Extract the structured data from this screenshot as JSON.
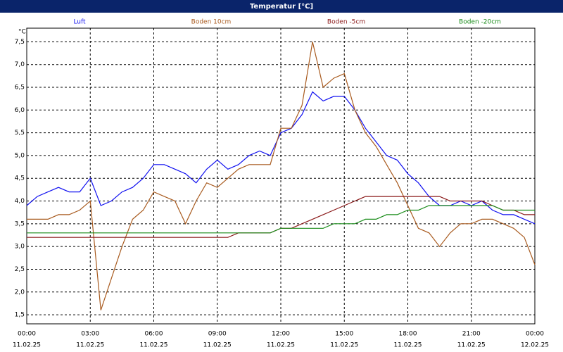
{
  "chart_data": {
    "type": "line",
    "title": "Temperatur [°C]",
    "y_label": "°C",
    "x": [
      0,
      0.5,
      1,
      1.5,
      2,
      2.5,
      3,
      3.5,
      4,
      4.5,
      5,
      5.5,
      6,
      6.5,
      7,
      7.5,
      8,
      8.5,
      9,
      9.5,
      10,
      10.5,
      11,
      11.5,
      12,
      12.5,
      13,
      13.5,
      14,
      14.5,
      15,
      15.5,
      16,
      16.5,
      17,
      17.5,
      18,
      18.5,
      19,
      19.5,
      20,
      20.5,
      21,
      21.5,
      22,
      22.5,
      23,
      23.5,
      24
    ],
    "series": [
      {
        "name": "Luft",
        "color": "#1010f0",
        "values": [
          3.9,
          4.1,
          4.2,
          4.3,
          4.2,
          4.2,
          4.5,
          3.9,
          4.0,
          4.2,
          4.3,
          4.5,
          4.8,
          4.8,
          4.7,
          4.6,
          4.4,
          4.7,
          4.9,
          4.7,
          4.8,
          5.0,
          5.1,
          5.0,
          5.5,
          5.6,
          5.9,
          6.4,
          6.2,
          6.3,
          6.3,
          6.0,
          5.6,
          5.3,
          5.0,
          4.9,
          4.6,
          4.4,
          4.1,
          3.9,
          3.9,
          4.0,
          3.9,
          4.0,
          3.8,
          3.7,
          3.7,
          3.6,
          3.5
        ]
      },
      {
        "name": "Boden 10cm",
        "color": "#a85a1e",
        "values": [
          3.6,
          3.6,
          3.6,
          3.7,
          3.7,
          3.8,
          4.0,
          1.6,
          2.3,
          3.0,
          3.6,
          3.8,
          4.2,
          4.1,
          4.0,
          3.5,
          4.0,
          4.4,
          4.3,
          4.5,
          4.7,
          4.8,
          4.8,
          4.8,
          5.6,
          5.6,
          6.1,
          7.5,
          6.5,
          6.7,
          6.8,
          6.0,
          5.5,
          5.2,
          4.8,
          4.4,
          3.9,
          3.4,
          3.3,
          3.0,
          3.3,
          3.5,
          3.5,
          3.6,
          3.6,
          3.5,
          3.4,
          3.2,
          2.6
        ]
      },
      {
        "name": "Boden -5cm",
        "color": "#8b1a1a",
        "values": [
          3.2,
          3.2,
          3.2,
          3.2,
          3.2,
          3.2,
          3.2,
          3.2,
          3.2,
          3.2,
          3.2,
          3.2,
          3.2,
          3.2,
          3.2,
          3.2,
          3.2,
          3.2,
          3.2,
          3.2,
          3.3,
          3.3,
          3.3,
          3.3,
          3.4,
          3.4,
          3.5,
          3.6,
          3.7,
          3.8,
          3.9,
          4.0,
          4.1,
          4.1,
          4.1,
          4.1,
          4.1,
          4.1,
          4.1,
          4.1,
          4.0,
          4.0,
          4.0,
          4.0,
          3.9,
          3.8,
          3.8,
          3.7,
          3.7
        ]
      },
      {
        "name": "Boden -20cm",
        "color": "#1a8c1a",
        "values": [
          3.3,
          3.3,
          3.3,
          3.3,
          3.3,
          3.3,
          3.3,
          3.3,
          3.3,
          3.3,
          3.3,
          3.3,
          3.3,
          3.3,
          3.3,
          3.3,
          3.3,
          3.3,
          3.3,
          3.3,
          3.3,
          3.3,
          3.3,
          3.3,
          3.4,
          3.4,
          3.4,
          3.4,
          3.4,
          3.5,
          3.5,
          3.5,
          3.6,
          3.6,
          3.7,
          3.7,
          3.8,
          3.8,
          3.9,
          3.9,
          3.9,
          3.9,
          3.9,
          3.9,
          3.9,
          3.8,
          3.8,
          3.8,
          3.8
        ]
      }
    ],
    "xlim": [
      0,
      24
    ],
    "xticks": [
      {
        "value": 0,
        "label": "00:00"
      },
      {
        "value": 3,
        "label": "03:00"
      },
      {
        "value": 6,
        "label": "06:00"
      },
      {
        "value": 9,
        "label": "09:00"
      },
      {
        "value": 12,
        "label": "12:00"
      },
      {
        "value": 15,
        "label": "15:00"
      },
      {
        "value": 18,
        "label": "18:00"
      },
      {
        "value": 21,
        "label": "21:00"
      },
      {
        "value": 24,
        "label": "00:00"
      }
    ],
    "xtick_dates": [
      "11.02.25",
      "11.02.25",
      "11.02.25",
      "11.02.25",
      "11.02.25",
      "11.02.25",
      "11.02.25",
      "11.02.25",
      "12.02.25"
    ],
    "ylim": [
      1.3,
      7.8
    ],
    "yticks": [
      {
        "value": 1.5,
        "label": "1,5"
      },
      {
        "value": 2.0,
        "label": "2,0"
      },
      {
        "value": 2.5,
        "label": "2,5"
      },
      {
        "value": 3.0,
        "label": "3,0"
      },
      {
        "value": 3.5,
        "label": "3,5"
      },
      {
        "value": 4.0,
        "label": "4,0"
      },
      {
        "value": 4.5,
        "label": "4,5"
      },
      {
        "value": 5.0,
        "label": "5,0"
      },
      {
        "value": 5.5,
        "label": "5,5"
      },
      {
        "value": 6.0,
        "label": "6,0"
      },
      {
        "value": 6.5,
        "label": "6,5"
      },
      {
        "value": 7.0,
        "label": "7,0"
      },
      {
        "value": 7.5,
        "label": "7,5"
      }
    ],
    "grid": true
  }
}
